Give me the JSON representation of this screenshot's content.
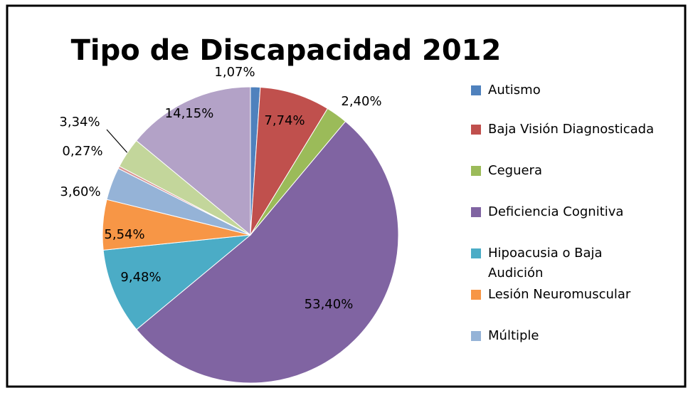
{
  "chart_data": {
    "type": "pie",
    "title": "Tipo de Discapacidad 2012",
    "categories": [
      "Autismo",
      "Baja Visión Diagnosticada",
      "Ceguera",
      "Deficiencia Cognitiva",
      "Hipoacusia o Baja Audición",
      "Lesión Neuromuscular",
      "Múltiple",
      null,
      null,
      null
    ],
    "values": [
      1.07,
      7.74,
      2.4,
      53.4,
      9.48,
      5.54,
      3.6,
      0.27,
      3.34,
      14.15
    ],
    "value_labels": [
      "1,07%",
      "7,74%",
      "2,40%",
      "53,40%",
      "9,48%",
      "5,54%",
      "3,60%",
      "0,27%",
      "3,34%",
      "14,15%"
    ],
    "colors": [
      "#4F81BD",
      "#C0504D",
      "#9BBB59",
      "#8064A2",
      "#4BACC6",
      "#F79646",
      "#95B3D7",
      "#D99694",
      "#C3D69B",
      "#B3A2C7"
    ],
    "legend": "right"
  }
}
